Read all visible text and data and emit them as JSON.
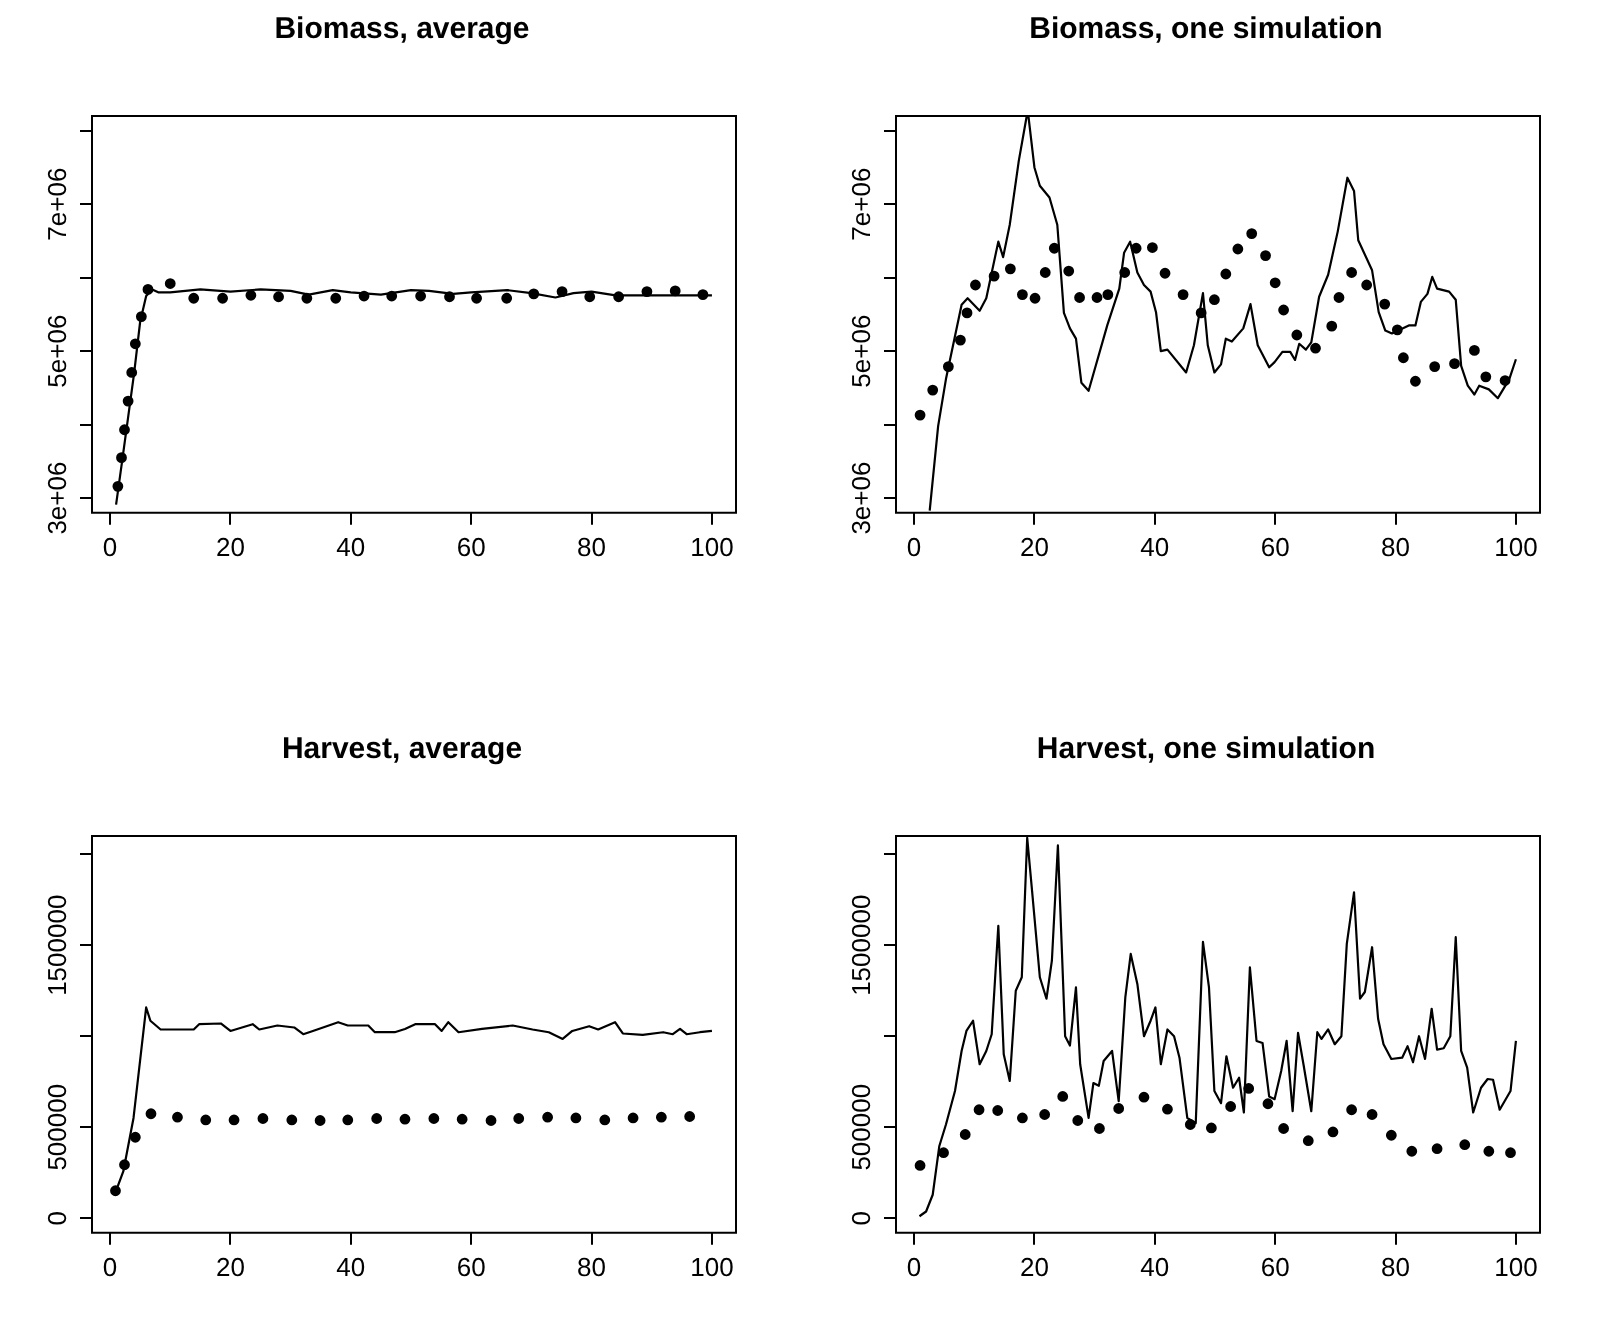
{
  "chart_data": [
    {
      "type": "line",
      "title": "Biomass, average",
      "xlim": [
        -3,
        104
      ],
      "xticks": [
        0,
        20,
        40,
        60,
        80,
        100
      ],
      "ylim": [
        2800000,
        8200000
      ],
      "yticks": [
        {
          "value": 3000000,
          "label": "3e+06"
        },
        {
          "value": 4000000,
          "label": null
        },
        {
          "value": 5000000,
          "label": "5e+06"
        },
        {
          "value": 6000000,
          "label": null
        },
        {
          "value": 7000000,
          "label": "7e+06"
        },
        {
          "value": 8000000,
          "label": null
        }
      ],
      "legend": false,
      "grid": false,
      "series": [
        {
          "type": "line",
          "marker": "none",
          "color": "#000000",
          "x": [
            1,
            2,
            3,
            4,
            5,
            6,
            7,
            8,
            10,
            15,
            20,
            25,
            30,
            33,
            37,
            40,
            45,
            50,
            53,
            57,
            60,
            66,
            70,
            74,
            77,
            80,
            84,
            90,
            100
          ],
          "values": [
            2910000,
            3500000,
            4100000,
            4700000,
            5400000,
            5750000,
            5840000,
            5800000,
            5800000,
            5840000,
            5810000,
            5840000,
            5820000,
            5770000,
            5830000,
            5800000,
            5770000,
            5830000,
            5820000,
            5780000,
            5800000,
            5830000,
            5790000,
            5730000,
            5790000,
            5810000,
            5760000,
            5760000,
            5760000
          ]
        },
        {
          "type": "scatter",
          "marker": "circle",
          "color": "#000000",
          "x": [
            1.3,
            1.9,
            2.4,
            3.0,
            3.6,
            4.2,
            5.2,
            6.3,
            10.0,
            13.9,
            18.7,
            23.4,
            28.0,
            32.7,
            37.5,
            42.2,
            46.8,
            51.6,
            56.4,
            60.9,
            65.9,
            70.4,
            75.1,
            79.7,
            84.5,
            89.2,
            93.9,
            98.5
          ],
          "values": [
            3160000,
            3550000,
            3930000,
            4320000,
            4710000,
            5100000,
            5470000,
            5840000,
            5920000,
            5720000,
            5720000,
            5760000,
            5740000,
            5720000,
            5720000,
            5750000,
            5750000,
            5750000,
            5740000,
            5720000,
            5720000,
            5780000,
            5810000,
            5740000,
            5740000,
            5810000,
            5820000,
            5770000
          ]
        }
      ]
    },
    {
      "type": "line",
      "title": "Biomass, one simulation",
      "xlim": [
        -3,
        104
      ],
      "xticks": [
        0,
        20,
        40,
        60,
        80,
        100
      ],
      "ylim": [
        2800000,
        8200000
      ],
      "yticks": [
        {
          "value": 3000000,
          "label": "3e+06"
        },
        {
          "value": 4000000,
          "label": null
        },
        {
          "value": 5000000,
          "label": "5e+06"
        },
        {
          "value": 6000000,
          "label": null
        },
        {
          "value": 7000000,
          "label": "7e+06"
        },
        {
          "value": 8000000,
          "label": null
        }
      ],
      "legend": false,
      "grid": false,
      "series": [
        {
          "type": "line",
          "marker": "none",
          "color": "#000000",
          "x": [
            2.6,
            4.0,
            5.3,
            7.9,
            8.9,
            10.9,
            12.0,
            14.0,
            14.8,
            15.9,
            17.4,
            18.7,
            19.0,
            20.0,
            20.9,
            22.5,
            23.8,
            24.9,
            25.9,
            26.9,
            27.8,
            29.0,
            32.1,
            34.1,
            34.9,
            35.9,
            37.1,
            38.2,
            39.3,
            40.2,
            41.0,
            42.1,
            45.2,
            46.5,
            48.0,
            48.8,
            49.9,
            51.0,
            51.8,
            52.8,
            54.7,
            55.9,
            57.1,
            59.0,
            59.9,
            61.2,
            62.5,
            63.3,
            64.0,
            65.1,
            66.0,
            67.3,
            68.8,
            70.4,
            72.0,
            73.1,
            73.8,
            76.1,
            77.2,
            78.3,
            79.4,
            82.2,
            83.3,
            84.2,
            85.3,
            86.1,
            86.9,
            88.9,
            90.0,
            90.9,
            92.0,
            93.1,
            93.9,
            95.5,
            97.0,
            98.9,
            100
          ],
          "values": [
            2830000,
            3980000,
            4620000,
            5630000,
            5720000,
            5550000,
            5720000,
            6490000,
            6280000,
            6720000,
            7590000,
            8190000,
            8200000,
            7500000,
            7250000,
            7090000,
            6720000,
            5520000,
            5310000,
            5170000,
            4570000,
            4460000,
            5350000,
            5850000,
            6340000,
            6490000,
            6070000,
            5900000,
            5810000,
            5530000,
            5000000,
            5020000,
            4710000,
            5080000,
            5790000,
            5080000,
            4710000,
            4820000,
            5170000,
            5130000,
            5310000,
            5640000,
            5080000,
            4780000,
            4850000,
            4990000,
            4990000,
            4880000,
            5100000,
            5020000,
            5120000,
            5740000,
            6040000,
            6630000,
            7360000,
            7180000,
            6510000,
            6100000,
            5530000,
            5280000,
            5240000,
            5350000,
            5350000,
            5670000,
            5780000,
            6010000,
            5850000,
            5810000,
            5700000,
            4800000,
            4530000,
            4410000,
            4530000,
            4480000,
            4360000,
            4620000,
            4890000
          ]
        },
        {
          "type": "scatter",
          "marker": "circle",
          "color": "#000000",
          "x": [
            1.0,
            3.1,
            5.7,
            7.7,
            8.8,
            10.2,
            13.3,
            16.0,
            18.0,
            20.1,
            21.8,
            23.3,
            25.7,
            27.5,
            30.4,
            32.2,
            35.0,
            36.9,
            39.6,
            41.7,
            44.7,
            47.7,
            49.9,
            51.8,
            53.8,
            56.1,
            58.4,
            60.0,
            61.4,
            63.6,
            66.7,
            69.4,
            70.6,
            72.7,
            75.2,
            78.2,
            80.3,
            81.3,
            83.3,
            86.5,
            89.8,
            93.1,
            95.0,
            98.2
          ],
          "values": [
            4130000,
            4470000,
            4790000,
            5150000,
            5520000,
            5900000,
            6020000,
            6120000,
            5770000,
            5720000,
            6070000,
            6400000,
            6090000,
            5730000,
            5730000,
            5770000,
            6070000,
            6400000,
            6410000,
            6060000,
            5770000,
            5520000,
            5700000,
            6050000,
            6390000,
            6600000,
            6300000,
            5930000,
            5560000,
            5220000,
            5040000,
            5340000,
            5730000,
            6070000,
            5900000,
            5640000,
            5290000,
            4910000,
            4590000,
            4790000,
            4830000,
            5010000,
            4650000,
            4600000
          ]
        }
      ]
    },
    {
      "type": "line",
      "title": "Harvest, average",
      "xlim": [
        -3,
        104
      ],
      "xticks": [
        0,
        20,
        40,
        60,
        80,
        100
      ],
      "ylim": [
        -80000,
        2100000
      ],
      "yticks": [
        0,
        500000,
        {
          "value": 1000000,
          "label": null
        },
        1500000,
        {
          "value": 2000000,
          "label": null
        }
      ],
      "legend": false,
      "grid": false,
      "series": [
        {
          "type": "line",
          "marker": "none",
          "color": "#000000",
          "x": [
            1,
            2.2,
            3.9,
            6.0,
            6.7,
            8.4,
            13.9,
            14.8,
            18.4,
            20.0,
            23.7,
            24.8,
            27.8,
            30.6,
            32.1,
            33.7,
            37.9,
            39.5,
            42.9,
            44.0,
            47.3,
            49.0,
            50.7,
            54.0,
            55.1,
            56.2,
            57.9,
            61.8,
            66.9,
            70.2,
            72.9,
            75.2,
            76.8,
            79.6,
            81.1,
            83.9,
            85.2,
            88.5,
            91.9,
            93.5,
            94.7,
            95.8,
            98.0,
            100
          ],
          "values": [
            151000,
            257000,
            551000,
            1158000,
            1085000,
            1037000,
            1037000,
            1066000,
            1070000,
            1029000,
            1066000,
            1037000,
            1059000,
            1048000,
            1011000,
            1029000,
            1077000,
            1059000,
            1059000,
            1022000,
            1022000,
            1040000,
            1066000,
            1066000,
            1029000,
            1077000,
            1022000,
            1040000,
            1059000,
            1037000,
            1022000,
            985000,
            1029000,
            1055000,
            1037000,
            1077000,
            1015000,
            1007000,
            1022000,
            1011000,
            1040000,
            1011000,
            1022000,
            1029000
          ]
        },
        {
          "type": "scatter",
          "marker": "circle",
          "color": "#000000",
          "x": [
            0.9,
            2.4,
            4.2,
            6.8,
            11.2,
            15.9,
            20.6,
            25.4,
            30.2,
            34.9,
            39.5,
            44.3,
            49.0,
            53.8,
            58.5,
            63.3,
            67.9,
            72.7,
            77.4,
            82.2,
            86.9,
            91.6,
            96.3
          ],
          "values": [
            151000,
            294000,
            445000,
            574000,
            555000,
            540000,
            540000,
            548000,
            540000,
            537000,
            540000,
            548000,
            544000,
            548000,
            544000,
            537000,
            548000,
            555000,
            551000,
            540000,
            551000,
            555000,
            559000
          ]
        }
      ]
    },
    {
      "type": "line",
      "title": "Harvest, one simulation",
      "xlim": [
        -3,
        104
      ],
      "xticks": [
        0,
        20,
        40,
        60,
        80,
        100
      ],
      "ylim": [
        -80000,
        2100000
      ],
      "yticks": [
        0,
        500000,
        {
          "value": 1000000,
          "label": null
        },
        1500000,
        {
          "value": 2000000,
          "label": null
        }
      ],
      "legend": false,
      "grid": false,
      "series": [
        {
          "type": "line",
          "marker": "none",
          "color": "#000000",
          "x": [
            0.9,
            2.0,
            3.1,
            4.2,
            5.3,
            6.8,
            7.9,
            8.7,
            9.8,
            10.9,
            12.0,
            12.9,
            14.0,
            14.9,
            15.9,
            16.9,
            17.9,
            18.8,
            19.6,
            20.9,
            22.0,
            22.9,
            23.9,
            25.1,
            25.9,
            26.9,
            27.6,
            29.0,
            29.8,
            30.7,
            31.5,
            32.9,
            34.0,
            35.1,
            36.0,
            37.1,
            38.2,
            39.3,
            40.1,
            41.0,
            42.1,
            43.2,
            44.1,
            45.4,
            46.8,
            48.0,
            49.0,
            49.9,
            51.0,
            51.9,
            53.0,
            54.0,
            54.8,
            55.8,
            56.9,
            57.9,
            59.0,
            59.9,
            61.0,
            61.9,
            62.9,
            63.8,
            64.7,
            66.0,
            67.0,
            67.7,
            68.8,
            69.9,
            71.0,
            71.9,
            73.1,
            74.1,
            74.9,
            76.1,
            77.1,
            78.0,
            79.3,
            81.1,
            82.0,
            82.9,
            83.9,
            84.9,
            86.0,
            86.9,
            88.0,
            89.1,
            90.0,
            90.9,
            91.9,
            92.9,
            94.2,
            95.3,
            96.2,
            97.3,
            99.1,
            100
          ],
          "values": [
            11000,
            37000,
            129000,
            397000,
            515000,
            699000,
            919000,
            1029000,
            1085000,
            846000,
            919000,
            1011000,
            1607000,
            901000,
            754000,
            1250000,
            1324000,
            2090000,
            1801000,
            1324000,
            1206000,
            1415000,
            2048000,
            1000000,
            949000,
            1268000,
            846000,
            551000,
            743000,
            728000,
            864000,
            919000,
            643000,
            1213000,
            1452000,
            1287000,
            1000000,
            1085000,
            1158000,
            846000,
            1037000,
            1000000,
            882000,
            551000,
            522000,
            1518000,
            1268000,
            699000,
            632000,
            890000,
            717000,
            772000,
            581000,
            1379000,
            974000,
            963000,
            669000,
            654000,
            809000,
            974000,
            588000,
            1018000,
            846000,
            588000,
            1022000,
            985000,
            1037000,
            956000,
            1000000,
            1507000,
            1790000,
            1206000,
            1243000,
            1489000,
            1096000,
            956000,
            875000,
            882000,
            945000,
            857000,
            1000000,
            875000,
            1151000,
            926000,
            934000,
            1000000,
            1544000,
            919000,
            827000,
            581000,
            717000,
            765000,
            761000,
            596000,
            699000,
            974000
          ]
        },
        {
          "type": "scatter",
          "marker": "circle",
          "color": "#000000",
          "x": [
            1.0,
            4.9,
            8.5,
            10.8,
            13.9,
            18.0,
            21.7,
            24.7,
            27.2,
            30.8,
            34.0,
            38.2,
            42.1,
            45.9,
            49.4,
            52.6,
            55.6,
            58.8,
            61.4,
            65.5,
            69.6,
            72.7,
            76.1,
            79.3,
            82.7,
            86.9,
            91.5,
            95.5,
            99.1
          ],
          "values": [
            290000,
            360000,
            460000,
            596000,
            592000,
            551000,
            570000,
            669000,
            537000,
            493000,
            603000,
            665000,
            599000,
            515000,
            496000,
            614000,
            713000,
            629000,
            493000,
            426000,
            474000,
            596000,
            570000,
            456000,
            368000,
            382000,
            404000,
            368000,
            360000
          ]
        }
      ]
    }
  ]
}
